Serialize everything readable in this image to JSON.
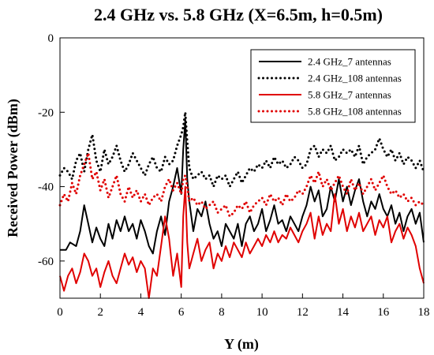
{
  "chart_data": {
    "type": "line",
    "title": "2.4 GHz vs. 5.8 GHz (X=6.5m, h=0.5m)",
    "xlabel": "Y (m)",
    "ylabel": "Received Power (dBm)",
    "xlim": [
      0,
      18
    ],
    "ylim": [
      -70,
      0
    ],
    "xticks": [
      0,
      2,
      4,
      6,
      8,
      10,
      12,
      14,
      16,
      18
    ],
    "yticks": [
      0,
      -20,
      -40,
      -60
    ],
    "grid": false,
    "legend": "top-right",
    "series": [
      {
        "name": "2.4 GHz_7 antennas",
        "color": "#000000",
        "style": "solid",
        "x": [
          0,
          0.3,
          0.5,
          0.8,
          1.0,
          1.2,
          1.4,
          1.6,
          1.8,
          2.0,
          2.2,
          2.4,
          2.6,
          2.8,
          3.0,
          3.2,
          3.4,
          3.6,
          3.8,
          4.0,
          4.2,
          4.4,
          4.6,
          4.8,
          5.0,
          5.2,
          5.4,
          5.6,
          5.8,
          6.0,
          6.1,
          6.2,
          6.3,
          6.4,
          6.6,
          6.8,
          7.0,
          7.2,
          7.4,
          7.6,
          7.8,
          8.0,
          8.2,
          8.4,
          8.6,
          8.8,
          9.0,
          9.2,
          9.4,
          9.6,
          9.8,
          10.0,
          10.2,
          10.4,
          10.6,
          10.8,
          11.0,
          11.2,
          11.4,
          11.6,
          11.8,
          12.0,
          12.2,
          12.4,
          12.6,
          12.8,
          13.0,
          13.2,
          13.4,
          13.6,
          13.8,
          14.0,
          14.2,
          14.4,
          14.6,
          14.8,
          15.0,
          15.2,
          15.4,
          15.6,
          15.8,
          16.0,
          16.2,
          16.4,
          16.6,
          16.8,
          17.0,
          17.2,
          17.4,
          17.6,
          17.8,
          18.0
        ],
        "y": [
          -57,
          -57,
          -55,
          -56,
          -52,
          -45,
          -50,
          -55,
          -51,
          -54,
          -56,
          -50,
          -54,
          -49,
          -52,
          -48,
          -52,
          -50,
          -54,
          -49,
          -52,
          -56,
          -58,
          -52,
          -48,
          -53,
          -44,
          -40,
          -35,
          -42,
          -30,
          -22,
          -38,
          -44,
          -52,
          -46,
          -48,
          -44,
          -50,
          -54,
          -52,
          -56,
          -50,
          -52,
          -54,
          -50,
          -56,
          -50,
          -48,
          -52,
          -50,
          -46,
          -52,
          -49,
          -45,
          -50,
          -49,
          -52,
          -48,
          -50,
          -52,
          -48,
          -45,
          -40,
          -44,
          -41,
          -48,
          -46,
          -40,
          -44,
          -38,
          -44,
          -40,
          -45,
          -41,
          -38,
          -44,
          -48,
          -44,
          -46,
          -42,
          -46,
          -48,
          -45,
          -50,
          -47,
          -52,
          -48,
          -46,
          -50,
          -47,
          -55
        ]
      },
      {
        "name": "2.4 GHz_108 antennas",
        "color": "#000000",
        "style": "dotted",
        "x": [
          0,
          0.2,
          0.4,
          0.6,
          0.8,
          1.0,
          1.2,
          1.4,
          1.6,
          1.8,
          2.0,
          2.2,
          2.4,
          2.6,
          2.8,
          3.0,
          3.2,
          3.4,
          3.6,
          3.8,
          4.0,
          4.2,
          4.4,
          4.6,
          4.8,
          5.0,
          5.2,
          5.4,
          5.6,
          5.8,
          6.0,
          6.1,
          6.2,
          6.3,
          6.4,
          6.6,
          6.8,
          7.0,
          7.2,
          7.4,
          7.6,
          7.8,
          8.0,
          8.2,
          8.4,
          8.6,
          8.8,
          9.0,
          9.2,
          9.4,
          9.6,
          9.8,
          10.0,
          10.2,
          10.4,
          10.6,
          10.8,
          11.0,
          11.2,
          11.4,
          11.6,
          11.8,
          12.0,
          12.2,
          12.4,
          12.6,
          12.8,
          13.0,
          13.2,
          13.4,
          13.6,
          13.8,
          14.0,
          14.2,
          14.4,
          14.6,
          14.8,
          15.0,
          15.2,
          15.4,
          15.6,
          15.8,
          16.0,
          16.2,
          16.4,
          16.6,
          16.8,
          17.0,
          17.2,
          17.4,
          17.6,
          17.8,
          18.0
        ],
        "y": [
          -37,
          -35,
          -36,
          -38,
          -33,
          -31,
          -36,
          -30,
          -26,
          -33,
          -36,
          -30,
          -34,
          -32,
          -29,
          -33,
          -36,
          -34,
          -31,
          -33,
          -35,
          -37,
          -34,
          -32,
          -35,
          -36,
          -32,
          -34,
          -33,
          -29,
          -26,
          -24,
          -20,
          -28,
          -35,
          -38,
          -37,
          -36,
          -38,
          -37,
          -40,
          -37,
          -38,
          -37,
          -40,
          -38,
          -36,
          -39,
          -37,
          -35,
          -36,
          -34,
          -35,
          -33,
          -35,
          -32,
          -34,
          -33,
          -35,
          -34,
          -32,
          -33,
          -35,
          -34,
          -30,
          -29,
          -32,
          -30,
          -31,
          -29,
          -33,
          -32,
          -30,
          -31,
          -30,
          -32,
          -29,
          -34,
          -32,
          -31,
          -30,
          -27,
          -30,
          -32,
          -30,
          -33,
          -31,
          -34,
          -32,
          -33,
          -35,
          -33,
          -36
        ]
      },
      {
        "name": "5.8 GHz_7 antennas",
        "color": "#e00000",
        "style": "solid",
        "x": [
          0,
          0.2,
          0.4,
          0.6,
          0.8,
          1.0,
          1.2,
          1.4,
          1.6,
          1.8,
          2.0,
          2.2,
          2.4,
          2.6,
          2.8,
          3.0,
          3.2,
          3.4,
          3.6,
          3.8,
          4.0,
          4.2,
          4.4,
          4.6,
          4.8,
          5.0,
          5.2,
          5.4,
          5.6,
          5.8,
          6.0,
          6.1,
          6.2,
          6.3,
          6.4,
          6.6,
          6.8,
          7.0,
          7.2,
          7.4,
          7.6,
          7.8,
          8.0,
          8.2,
          8.4,
          8.6,
          8.8,
          9.0,
          9.2,
          9.4,
          9.6,
          9.8,
          10.0,
          10.2,
          10.4,
          10.6,
          10.8,
          11.0,
          11.2,
          11.4,
          11.6,
          11.8,
          12.0,
          12.2,
          12.4,
          12.6,
          12.8,
          13.0,
          13.2,
          13.4,
          13.6,
          13.8,
          14.0,
          14.2,
          14.4,
          14.6,
          14.8,
          15.0,
          15.2,
          15.4,
          15.6,
          15.8,
          16.0,
          16.2,
          16.4,
          16.6,
          16.8,
          17.0,
          17.2,
          17.4,
          17.6,
          17.8,
          18.0
        ],
        "y": [
          -64,
          -68,
          -64,
          -62,
          -66,
          -63,
          -58,
          -60,
          -64,
          -62,
          -67,
          -63,
          -60,
          -64,
          -66,
          -62,
          -58,
          -61,
          -59,
          -63,
          -60,
          -62,
          -70,
          -62,
          -64,
          -56,
          -48,
          -54,
          -64,
          -58,
          -67,
          -48,
          -40,
          -55,
          -62,
          -58,
          -54,
          -60,
          -57,
          -55,
          -62,
          -58,
          -60,
          -56,
          -59,
          -55,
          -57,
          -59,
          -55,
          -58,
          -56,
          -54,
          -56,
          -53,
          -55,
          -52,
          -55,
          -53,
          -54,
          -51,
          -53,
          -55,
          -52,
          -50,
          -47,
          -54,
          -48,
          -53,
          -50,
          -52,
          -42,
          -50,
          -46,
          -52,
          -48,
          -51,
          -47,
          -52,
          -50,
          -48,
          -53,
          -49,
          -51,
          -48,
          -55,
          -52,
          -50,
          -54,
          -51,
          -53,
          -56,
          -62,
          -66
        ]
      },
      {
        "name": "5.8 GHz_108 antennas",
        "color": "#e00000",
        "style": "dotted",
        "x": [
          0,
          0.2,
          0.4,
          0.6,
          0.8,
          1.0,
          1.2,
          1.4,
          1.6,
          1.8,
          2.0,
          2.2,
          2.4,
          2.6,
          2.8,
          3.0,
          3.2,
          3.4,
          3.6,
          3.8,
          4.0,
          4.2,
          4.4,
          4.6,
          4.8,
          5.0,
          5.2,
          5.4,
          5.6,
          5.8,
          6.0,
          6.1,
          6.2,
          6.3,
          6.4,
          6.6,
          6.8,
          7.0,
          7.2,
          7.4,
          7.6,
          7.8,
          8.0,
          8.2,
          8.4,
          8.6,
          8.8,
          9.0,
          9.2,
          9.4,
          9.6,
          9.8,
          10.0,
          10.2,
          10.4,
          10.6,
          10.8,
          11.0,
          11.2,
          11.4,
          11.6,
          11.8,
          12.0,
          12.2,
          12.4,
          12.6,
          12.8,
          13.0,
          13.2,
          13.4,
          13.6,
          13.8,
          14.0,
          14.2,
          14.4,
          14.6,
          14.8,
          15.0,
          15.2,
          15.4,
          15.6,
          15.8,
          16.0,
          16.2,
          16.4,
          16.6,
          16.8,
          17.0,
          17.2,
          17.4,
          17.6,
          17.8,
          18.0
        ],
        "y": [
          -45,
          -42,
          -44,
          -39,
          -42,
          -37,
          -34,
          -31,
          -38,
          -36,
          -41,
          -38,
          -43,
          -40,
          -37,
          -42,
          -44,
          -40,
          -43,
          -41,
          -44,
          -42,
          -45,
          -43,
          -42,
          -44,
          -40,
          -38,
          -41,
          -39,
          -42,
          -38,
          -37,
          -40,
          -44,
          -43,
          -45,
          -44,
          -46,
          -45,
          -44,
          -47,
          -46,
          -45,
          -48,
          -47,
          -45,
          -46,
          -44,
          -47,
          -45,
          -44,
          -43,
          -45,
          -42,
          -44,
          -43,
          -45,
          -42,
          -44,
          -43,
          -41,
          -42,
          -40,
          -37,
          -39,
          -36,
          -40,
          -38,
          -41,
          -39,
          -37,
          -40,
          -42,
          -38,
          -41,
          -39,
          -42,
          -40,
          -38,
          -41,
          -39,
          -37,
          -40,
          -42,
          -41,
          -43,
          -42,
          -44,
          -43,
          -45,
          -44,
          -45
        ]
      }
    ]
  }
}
